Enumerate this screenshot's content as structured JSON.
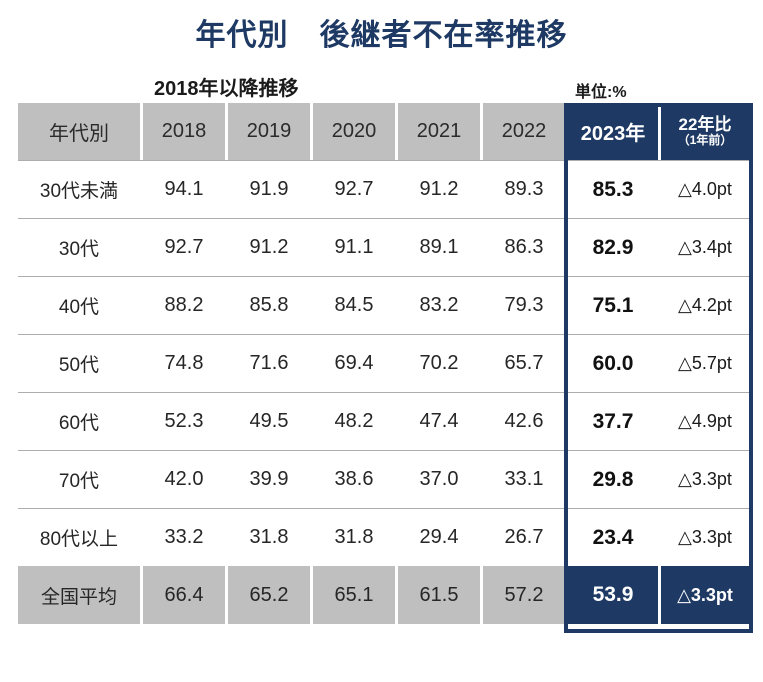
{
  "title": "年代別　後継者不在率推移",
  "subtitle_left": "2018年以降推移",
  "unit_label": "単位:%",
  "colors": {
    "navy": "#1E3A64",
    "header_gray": "#BFBFBF",
    "row_line": "#ADADAD"
  },
  "table": {
    "header": {
      "col0": "年代別",
      "years": [
        "2018",
        "2019",
        "2020",
        "2021",
        "2022"
      ],
      "current": "2023年",
      "diff_main": "22年比",
      "diff_sub": "（1年前）"
    },
    "rows": [
      {
        "label": "30代未満",
        "values": [
          "94.1",
          "91.9",
          "92.7",
          "91.2",
          "89.3"
        ],
        "current": "85.3",
        "diff": "△4.0pt"
      },
      {
        "label": "30代",
        "values": [
          "92.7",
          "91.2",
          "91.1",
          "89.1",
          "86.3"
        ],
        "current": "82.9",
        "diff": "△3.4pt"
      },
      {
        "label": "40代",
        "values": [
          "88.2",
          "85.8",
          "84.5",
          "83.2",
          "79.3"
        ],
        "current": "75.1",
        "diff": "△4.2pt"
      },
      {
        "label": "50代",
        "values": [
          "74.8",
          "71.6",
          "69.4",
          "70.2",
          "65.7"
        ],
        "current": "60.0",
        "diff": "△5.7pt"
      },
      {
        "label": "60代",
        "values": [
          "52.3",
          "49.5",
          "48.2",
          "47.4",
          "42.6"
        ],
        "current": "37.7",
        "diff": "△4.9pt"
      },
      {
        "label": "70代",
        "values": [
          "42.0",
          "39.9",
          "38.6",
          "37.0",
          "33.1"
        ],
        "current": "29.8",
        "diff": "△3.3pt"
      },
      {
        "label": "80代以上",
        "values": [
          "33.2",
          "31.8",
          "31.8",
          "29.4",
          "26.7"
        ],
        "current": "23.4",
        "diff": "△3.3pt"
      }
    ],
    "summary": {
      "label": "全国平均",
      "values": [
        "66.4",
        "65.2",
        "65.1",
        "61.5",
        "57.2"
      ],
      "current": "53.9",
      "diff": "△3.3pt"
    }
  },
  "chart_data": {
    "type": "table",
    "title": "年代別 後継者不在率推移",
    "subtitle": "2018年以降推移",
    "unit": "%",
    "columns": [
      "年代別",
      "2018",
      "2019",
      "2020",
      "2021",
      "2022",
      "2023年",
      "22年比(1年前)"
    ],
    "rows": [
      [
        "30代未満",
        94.1,
        91.9,
        92.7,
        91.2,
        89.3,
        85.3,
        "△4.0pt"
      ],
      [
        "30代",
        92.7,
        91.2,
        91.1,
        89.1,
        86.3,
        82.9,
        "△3.4pt"
      ],
      [
        "40代",
        88.2,
        85.8,
        84.5,
        83.2,
        79.3,
        75.1,
        "△4.2pt"
      ],
      [
        "50代",
        74.8,
        71.6,
        69.4,
        70.2,
        65.7,
        60.0,
        "△5.7pt"
      ],
      [
        "60代",
        52.3,
        49.5,
        48.2,
        47.4,
        42.6,
        37.7,
        "△4.9pt"
      ],
      [
        "70代",
        42.0,
        39.9,
        38.6,
        37.0,
        33.1,
        29.8,
        "△3.3pt"
      ],
      [
        "80代以上",
        33.2,
        31.8,
        31.8,
        29.4,
        26.7,
        23.4,
        "△3.3pt"
      ],
      [
        "全国平均",
        66.4,
        65.2,
        65.1,
        61.5,
        57.2,
        53.9,
        "△3.3pt"
      ]
    ],
    "highlight_column": "2023年",
    "legend_position": "none",
    "grid": "horizontal-lines"
  }
}
